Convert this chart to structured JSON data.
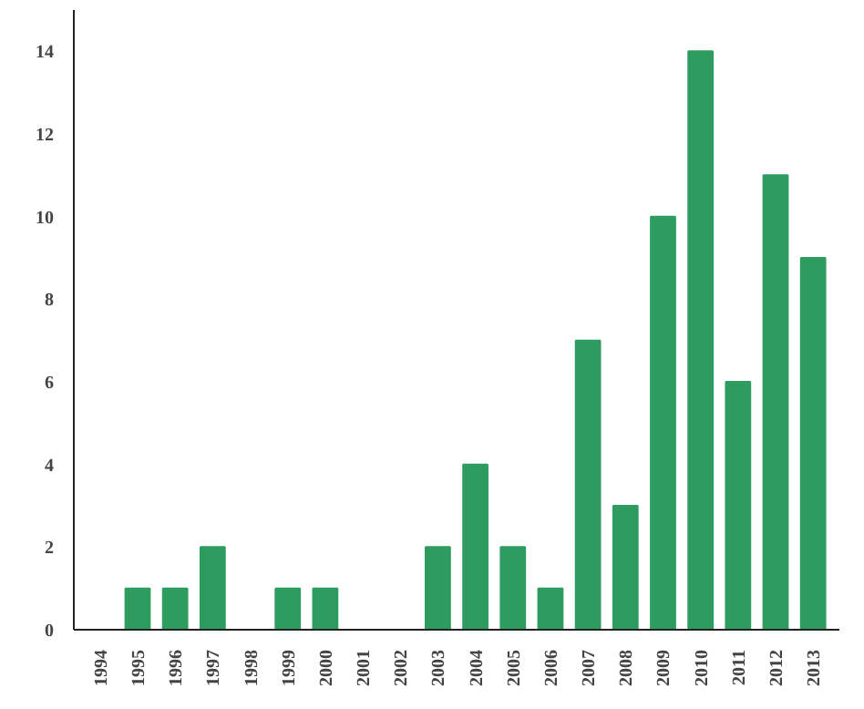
{
  "chart_data": {
    "type": "bar",
    "categories": [
      "1994",
      "1995",
      "1996",
      "1997",
      "1998",
      "1999",
      "2000",
      "2001",
      "2002",
      "2003",
      "2004",
      "2005",
      "2006",
      "2007",
      "2008",
      "2009",
      "2010",
      "2011",
      "2012",
      "2013"
    ],
    "values": [
      0,
      1,
      1,
      2,
      0,
      1,
      1,
      0,
      0,
      2,
      4,
      2,
      1,
      7,
      3,
      10,
      14,
      6,
      11,
      9
    ],
    "color": "#2e9c5f",
    "ylim": [
      0,
      15
    ],
    "yticks": [
      0,
      2,
      4,
      6,
      8,
      10,
      12,
      14
    ],
    "grid": false
  }
}
